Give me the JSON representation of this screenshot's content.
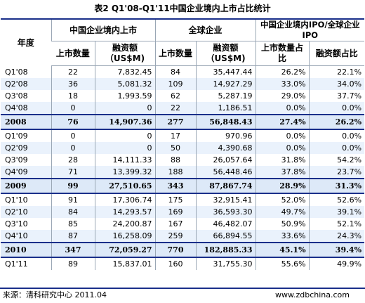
{
  "title": "表2 Q1'08-Q1'11中国企业境内上市占比统计",
  "header": {
    "year": "年度",
    "group1": "中国企业境内上市",
    "group2": "全球企业",
    "group3": "中国企业境内IPO/全球企业IPO",
    "sub": [
      "上市数量",
      "融资额（US$M)",
      "上市数量",
      "融资额（US$M)",
      "上市数量占比",
      "融资额占比"
    ]
  },
  "rows": [
    {
      "type": "q",
      "label": "Q1'08",
      "cn_count": "22",
      "cn_amount": "7,832.45",
      "gl_count": "84",
      "gl_amount": "35,447.44",
      "count_ratio": "26.2%",
      "amount_ratio": "22.1%"
    },
    {
      "type": "q",
      "label": "Q2'08",
      "cn_count": "36",
      "cn_amount": "5,081.32",
      "gl_count": "109",
      "gl_amount": "14,927.29",
      "count_ratio": "33.0%",
      "amount_ratio": "34.0%"
    },
    {
      "type": "q",
      "label": "Q3'08",
      "cn_count": "18",
      "cn_amount": "1,993.59",
      "gl_count": "62",
      "gl_amount": "5,287.19",
      "count_ratio": "29.0%",
      "amount_ratio": "37.7%"
    },
    {
      "type": "q",
      "label": "Q4'08",
      "cn_count": "0",
      "cn_amount": "0",
      "gl_count": "22",
      "gl_amount": "1,186.51",
      "count_ratio": "0.0%",
      "amount_ratio": "0.0%"
    },
    {
      "type": "y",
      "label": "2008",
      "cn_count": "76",
      "cn_amount": "14,907.36",
      "gl_count": "277",
      "gl_amount": "56,848.43",
      "count_ratio": "27.4%",
      "amount_ratio": "26.2%"
    },
    {
      "type": "q",
      "label": "Q1'09",
      "cn_count": "0",
      "cn_amount": "0",
      "gl_count": "17",
      "gl_amount": "970.96",
      "count_ratio": "0.0%",
      "amount_ratio": "0.0%"
    },
    {
      "type": "q",
      "label": "Q2'09",
      "cn_count": "0",
      "cn_amount": "0",
      "gl_count": "50",
      "gl_amount": "4,390.68",
      "count_ratio": "0.0%",
      "amount_ratio": "0.0%"
    },
    {
      "type": "q",
      "label": "Q3'09",
      "cn_count": "28",
      "cn_amount": "14,111.33",
      "gl_count": "88",
      "gl_amount": "26,057.64",
      "count_ratio": "31.8%",
      "amount_ratio": "54.2%"
    },
    {
      "type": "q",
      "label": "Q4'09",
      "cn_count": "71",
      "cn_amount": "13,399.32",
      "gl_count": "188",
      "gl_amount": "56,448.46",
      "count_ratio": "37.8%",
      "amount_ratio": "23.7%"
    },
    {
      "type": "y",
      "label": "2009",
      "cn_count": "99",
      "cn_amount": "27,510.65",
      "gl_count": "343",
      "gl_amount": "87,867.74",
      "count_ratio": "28.9%",
      "amount_ratio": "31.3%"
    },
    {
      "type": "q",
      "label": "Q1'10",
      "cn_count": "91",
      "cn_amount": "17,306.74",
      "gl_count": "175",
      "gl_amount": "32,915.41",
      "count_ratio": "52.0%",
      "amount_ratio": "52.6%"
    },
    {
      "type": "q",
      "label": "Q2'10",
      "cn_count": "84",
      "cn_amount": "14,293.57",
      "gl_count": "169",
      "gl_amount": "36,593.30",
      "count_ratio": "49.7%",
      "amount_ratio": "39.1%"
    },
    {
      "type": "q",
      "label": "Q3'10",
      "cn_count": "85",
      "cn_amount": "24,200.87",
      "gl_count": "167",
      "gl_amount": "46,482.07",
      "count_ratio": "50.9%",
      "amount_ratio": "52.1%"
    },
    {
      "type": "q",
      "label": "Q4'10",
      "cn_count": "87",
      "cn_amount": "16,258.09",
      "gl_count": "259",
      "gl_amount": "66,894.55",
      "count_ratio": "33.6%",
      "amount_ratio": "24.3%"
    },
    {
      "type": "y",
      "label": "2010",
      "cn_count": "347",
      "cn_amount": "72,059.27",
      "gl_count": "770",
      "gl_amount": "182,885.33",
      "count_ratio": "45.1%",
      "amount_ratio": "39.4%"
    },
    {
      "type": "q",
      "label": "Q1'11",
      "cn_count": "89",
      "cn_amount": "15,837.01",
      "gl_count": "160",
      "gl_amount": "31,755.30",
      "count_ratio": "55.6%",
      "amount_ratio": "49.9%"
    }
  ],
  "footer": {
    "source": "来源：清科研究中心  2011.04",
    "site": "www.zdbchina.com"
  }
}
